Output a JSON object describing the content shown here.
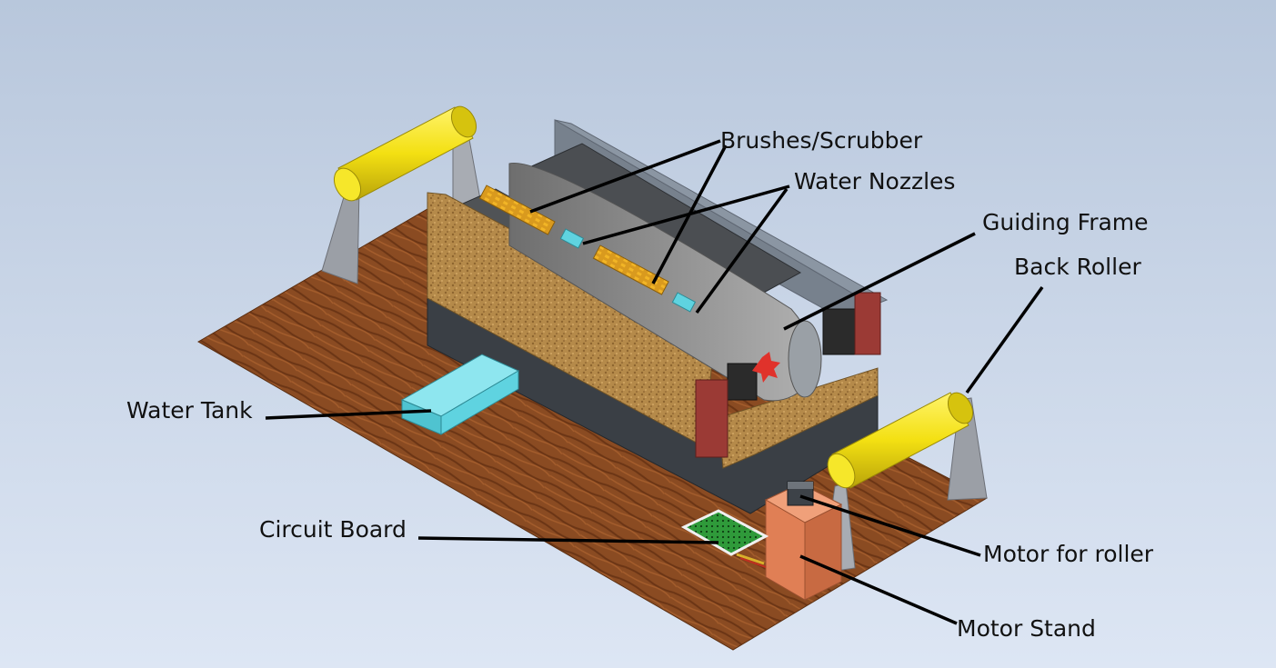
{
  "labels": {
    "brushes": "Brushes/Scrubber",
    "nozzles": "Water Nozzles",
    "guiding_frame": "Guiding Frame",
    "back_roller": "Back Roller",
    "water_tank": "Water Tank",
    "circuit_board": "Circuit Board",
    "motor_roller": "Motor for roller",
    "motor_stand": "Motor Stand"
  },
  "colors": {
    "background_top": "#b8c7dc",
    "background_bottom": "#dde6f4",
    "wood": "#8a4b22",
    "roller": "#f3e012",
    "cork": "#b58a4a",
    "dark_body": "#3a3f45",
    "water_tank": "#5fd3e0",
    "motor": "#9b3a35",
    "stand": "#e07f55",
    "circuit": "#2f9a3a",
    "leader": "#000000"
  }
}
